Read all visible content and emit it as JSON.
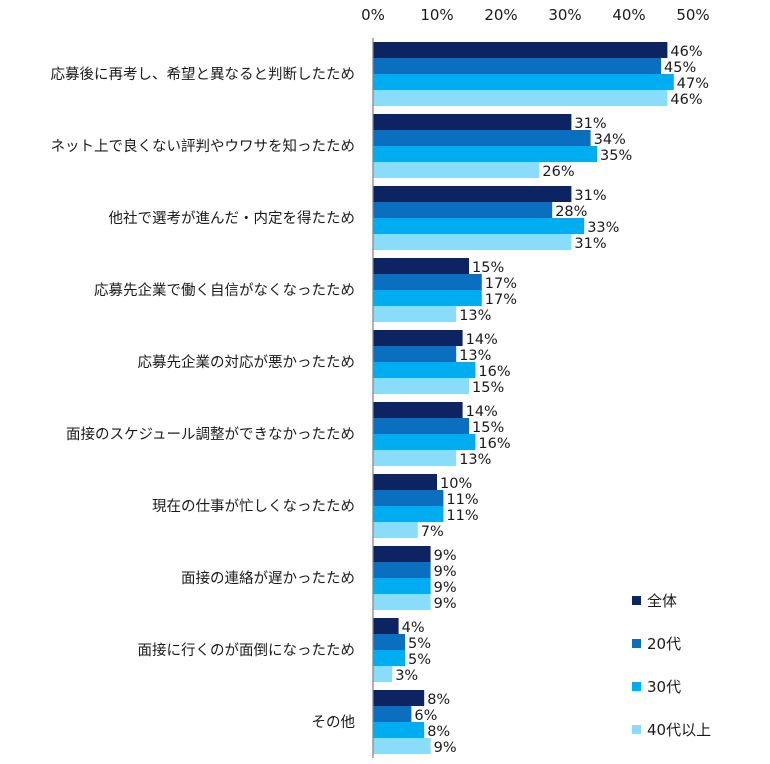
{
  "chart_data": {
    "type": "bar",
    "orientation": "horizontal",
    "categories": [
      "応募後に再考し、希望と異なると判断したため",
      "ネット上で良くない評判やウワサを知ったため",
      "他社で選考が進んだ・内定を得たため",
      "応募先企業で働く自信がなくなったため",
      "応募先企業の対応が悪かったため",
      "面接のスケジュール調整ができなかったため",
      "現在の仕事が忙しくなったため",
      "面接の連絡が遅かったため",
      "面接に行くのが面倒になったため",
      "その他"
    ],
    "series": [
      {
        "name": "全体",
        "color": "#0c2461",
        "values": [
          46,
          31,
          31,
          15,
          14,
          14,
          10,
          9,
          4,
          8
        ]
      },
      {
        "name": "20代",
        "color": "#0b6fc0",
        "values": [
          45,
          34,
          28,
          17,
          13,
          15,
          11,
          9,
          5,
          6
        ]
      },
      {
        "name": "30代",
        "color": "#00adf0",
        "values": [
          47,
          35,
          33,
          17,
          16,
          16,
          11,
          9,
          5,
          8
        ]
      },
      {
        "name": "40代以上",
        "color": "#8adcfb",
        "values": [
          46,
          26,
          31,
          13,
          15,
          13,
          7,
          9,
          3,
          9
        ]
      }
    ],
    "xlim": [
      0,
      50
    ],
    "xticks": [
      "0%",
      "10%",
      "20%",
      "30%",
      "40%",
      "50%"
    ],
    "value_suffix": "%",
    "legend_position": "bottom-right",
    "grid": false
  }
}
